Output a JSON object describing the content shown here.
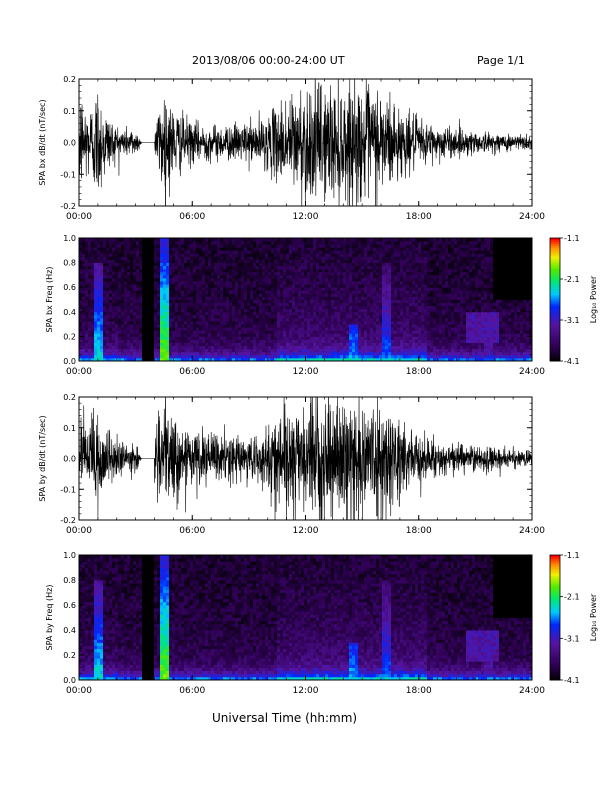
{
  "header": {
    "title": "2013/08/06  00:00-24:00 UT",
    "page": "Page 1/1"
  },
  "footer": {
    "xlabel": "Universal Time (hh:mm)"
  },
  "chart_data": [
    {
      "type": "line",
      "ylabel": "SPA bx dB/dt (nT/sec)",
      "xlim": [
        "00:00",
        "24:00"
      ],
      "ylim": [
        -0.2,
        0.2
      ],
      "x_ticks": [
        "00:00",
        "06:00",
        "12:00",
        "18:00",
        "24:00"
      ],
      "y_ticks": [
        "-0.2",
        "-0.1",
        "0.0",
        "0.1",
        "0.2"
      ],
      "data_gap": [
        "03:20",
        "04:00"
      ],
      "amplitude_envelope": {
        "x": [
          "00:00",
          "00:30",
          "01:00",
          "01:30",
          "02:00",
          "02:30",
          "03:00",
          "03:20",
          "04:00",
          "04:30",
          "05:00",
          "06:00",
          "07:00",
          "08:00",
          "09:00",
          "10:00",
          "11:00",
          "12:00",
          "13:00",
          "14:00",
          "15:00",
          "16:00",
          "17:00",
          "18:00",
          "19:00",
          "20:00",
          "21:00",
          "22:00",
          "23:00",
          "24:00"
        ],
        "y": [
          0.2,
          0.12,
          0.2,
          0.1,
          0.06,
          0.05,
          0.05,
          0,
          0.06,
          0.2,
          0.12,
          0.07,
          0.06,
          0.06,
          0.07,
          0.09,
          0.16,
          0.2,
          0.2,
          0.2,
          0.2,
          0.2,
          0.12,
          0.08,
          0.06,
          0.05,
          0.04,
          0.03,
          0.03,
          0.03
        ]
      },
      "color": "#000000"
    },
    {
      "type": "heatmap",
      "ylabel": "SPA bx Freq (Hz)",
      "xlim": [
        "00:00",
        "24:00"
      ],
      "ylim": [
        0.0,
        1.0
      ],
      "x_ticks": [
        "00:00",
        "06:00",
        "12:00",
        "18:00",
        "24:00"
      ],
      "y_ticks": [
        "0.0",
        "0.2",
        "0.4",
        "0.6",
        "0.8",
        "1.0"
      ],
      "colorbar": {
        "label": "Log₁₀ Power",
        "ticks": [
          "-1.1",
          "-2.1",
          "-3.1",
          "-4.1"
        ],
        "range": [
          -4.1,
          -1.1
        ]
      },
      "data_gap": [
        "03:20",
        "04:00"
      ],
      "features": [
        {
          "time": "01:00",
          "freq_max": 0.8,
          "log_power": -2.3
        },
        {
          "time": "04:30",
          "freq_max": 1.0,
          "log_power": -1.8
        },
        {
          "time": "14:30",
          "freq_max": 0.3,
          "log_power": -2.5
        },
        {
          "time": "16:15",
          "freq_max": 0.8,
          "log_power": -2.6
        },
        {
          "time": "21:45",
          "freq_max": 0.35,
          "log_power": -3.1
        }
      ]
    },
    {
      "type": "line",
      "ylabel": "SPA by dB/dt (nT/sec)",
      "xlim": [
        "00:00",
        "24:00"
      ],
      "ylim": [
        -0.2,
        0.2
      ],
      "x_ticks": [
        "00:00",
        "06:00",
        "12:00",
        "18:00",
        "24:00"
      ],
      "y_ticks": [
        "-0.2",
        "-0.1",
        "0.0",
        "0.1",
        "0.2"
      ],
      "data_gap": [
        "03:20",
        "04:00"
      ],
      "amplitude_envelope": {
        "x": [
          "00:00",
          "00:30",
          "01:00",
          "01:30",
          "02:00",
          "02:30",
          "03:00",
          "03:20",
          "04:00",
          "04:30",
          "05:00",
          "06:00",
          "07:00",
          "08:00",
          "09:00",
          "10:00",
          "11:00",
          "12:00",
          "13:00",
          "14:00",
          "15:00",
          "16:00",
          "17:00",
          "18:00",
          "19:00",
          "20:00",
          "21:00",
          "22:00",
          "23:00",
          "24:00"
        ],
        "y": [
          0.2,
          0.1,
          0.2,
          0.1,
          0.07,
          0.05,
          0.05,
          0,
          0.08,
          0.2,
          0.14,
          0.1,
          0.09,
          0.08,
          0.08,
          0.1,
          0.2,
          0.2,
          0.2,
          0.2,
          0.2,
          0.2,
          0.14,
          0.09,
          0.06,
          0.05,
          0.05,
          0.04,
          0.03,
          0.03
        ]
      },
      "color": "#000000"
    },
    {
      "type": "heatmap",
      "ylabel": "SPA by Freq (Hz)",
      "xlim": [
        "00:00",
        "24:00"
      ],
      "ylim": [
        0.0,
        1.0
      ],
      "x_ticks": [
        "00:00",
        "06:00",
        "12:00",
        "18:00",
        "24:00"
      ],
      "y_ticks": [
        "0.0",
        "0.2",
        "0.4",
        "0.6",
        "0.8",
        "1.0"
      ],
      "colorbar": {
        "label": "Log₁₀ Power",
        "ticks": [
          "-1.1",
          "-2.1",
          "-3.1",
          "-4.1"
        ],
        "range": [
          -4.1,
          -1.1
        ]
      },
      "data_gap": [
        "03:20",
        "04:00"
      ],
      "features": [
        {
          "time": "01:00",
          "freq_max": 0.8,
          "log_power": -2.3
        },
        {
          "time": "04:30",
          "freq_max": 1.0,
          "log_power": -1.8
        },
        {
          "time": "14:30",
          "freq_max": 0.3,
          "log_power": -2.5
        },
        {
          "time": "16:15",
          "freq_max": 0.8,
          "log_power": -2.6
        },
        {
          "time": "21:45",
          "freq_max": 0.4,
          "log_power": -3.1
        }
      ]
    }
  ]
}
